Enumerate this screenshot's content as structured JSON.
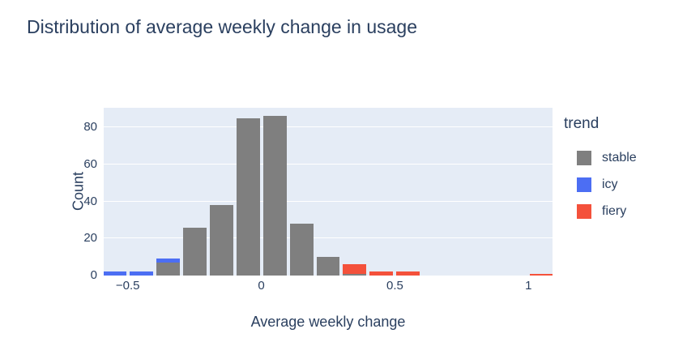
{
  "chart_data": {
    "type": "bar",
    "subtype": "stacked-histogram",
    "title": "Distribution of average weekly change in usage",
    "xlabel": "Average weekly change",
    "ylabel": "Count",
    "legend_title": "trend",
    "legend_position": "right",
    "bin_width": 0.1,
    "bin_centers": [
      -0.55,
      -0.45,
      -0.35,
      -0.25,
      -0.15,
      -0.05,
      0.05,
      0.15,
      0.25,
      0.35,
      0.45,
      0.55,
      1.05
    ],
    "series": [
      {
        "name": "stable",
        "color": "#7f7f7f",
        "values": [
          0,
          0,
          7,
          26,
          38,
          85,
          86,
          28,
          10,
          1,
          0,
          0,
          0
        ]
      },
      {
        "name": "icy",
        "color": "#4c6ef3",
        "values": [
          2,
          2,
          2,
          0,
          0,
          0,
          0,
          0,
          0,
          0,
          0,
          0,
          0
        ]
      },
      {
        "name": "fiery",
        "color": "#f4513b",
        "values": [
          0,
          0,
          0,
          0,
          0,
          0,
          0,
          0,
          0,
          5,
          2,
          2,
          1
        ]
      }
    ],
    "xlim": [
      -0.59,
      1.09
    ],
    "ylim": [
      0,
      90.5
    ],
    "xticks": [
      {
        "value": -0.5,
        "label": "−0.5"
      },
      {
        "value": 0,
        "label": "0"
      },
      {
        "value": 0.5,
        "label": "0.5"
      },
      {
        "value": 1,
        "label": "1"
      }
    ],
    "yticks": [
      {
        "value": 0,
        "label": "0"
      },
      {
        "value": 20,
        "label": "20"
      },
      {
        "value": 40,
        "label": "40"
      },
      {
        "value": 60,
        "label": "60"
      },
      {
        "value": 80,
        "label": "80"
      }
    ],
    "grid": "horizontal",
    "plot_bg": "#e5ecf6",
    "grid_color": "#ffffff",
    "paper_bg": "#ffffff",
    "text_color": "#2a3f5f"
  }
}
